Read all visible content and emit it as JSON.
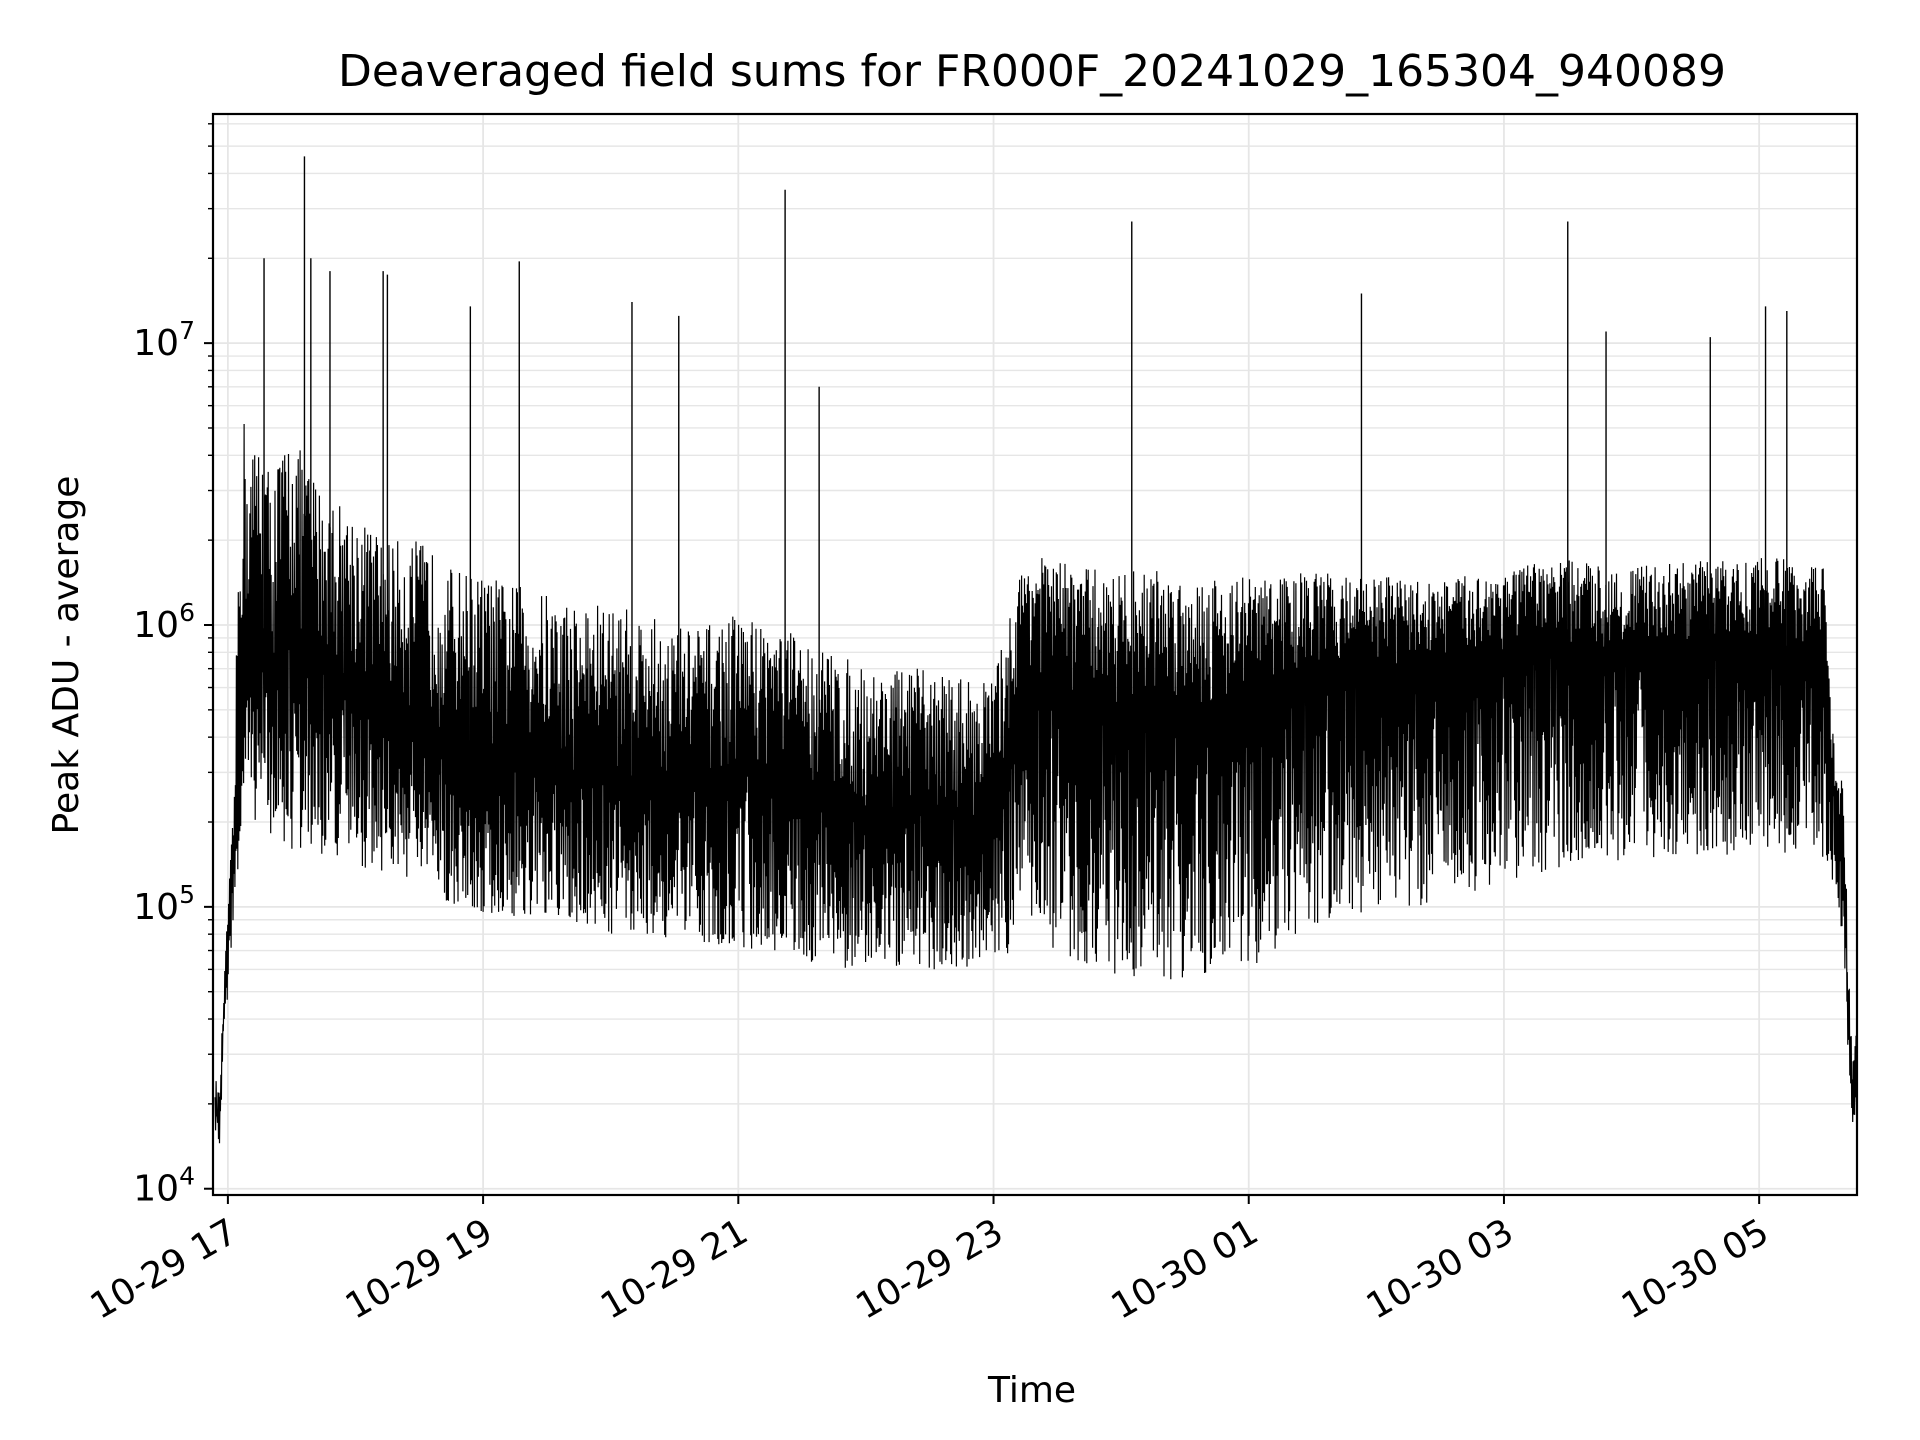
{
  "chart_data": {
    "type": "line",
    "title": "Deaveraged field sums for FR000F_20241029_165304_940089",
    "xlabel": "Time",
    "ylabel": "Peak ADU - average",
    "yscale": "log",
    "ylim": [
      9500,
      65000000
    ],
    "xlim": [
      "2024-10-29 16:53",
      "2024-10-30 05:46"
    ],
    "grid": true,
    "line_color": "#000000",
    "grid_color": "#e6e6e6",
    "x_ticks": [
      {
        "value": "2024-10-29 17:00",
        "label": "10-29 17"
      },
      {
        "value": "2024-10-29 19:00",
        "label": "10-29 19"
      },
      {
        "value": "2024-10-29 21:00",
        "label": "10-29 21"
      },
      {
        "value": "2024-10-29 23:00",
        "label": "10-29 23"
      },
      {
        "value": "2024-10-30 01:00",
        "label": "10-30 01"
      },
      {
        "value": "2024-10-30 03:00",
        "label": "10-30 03"
      },
      {
        "value": "2024-10-30 05:00",
        "label": "10-30 05"
      }
    ],
    "y_ticks": [
      {
        "value": 10000,
        "base": "10",
        "exp": "4"
      },
      {
        "value": 100000,
        "base": "10",
        "exp": "5"
      },
      {
        "value": 1000000,
        "base": "10",
        "exp": "6"
      },
      {
        "value": 10000000,
        "base": "10",
        "exp": "7"
      }
    ],
    "series": [
      {
        "x": [
          "2024-10-29 16:54",
          "2024-10-29 16:56",
          "2024-10-29 16:58",
          "2024-10-29 17:00",
          "2024-10-29 17:03",
          "2024-10-29 17:05",
          "2024-10-29 17:07",
          "2024-10-29 17:10",
          "2024-10-29 17:15",
          "2024-10-29 17:20",
          "2024-10-29 17:30",
          "2024-10-29 17:35",
          "2024-10-29 17:45",
          "2024-10-29 18:00",
          "2024-10-29 18:15",
          "2024-10-29 18:30",
          "2024-10-29 18:45",
          "2024-10-29 19:00",
          "2024-10-29 19:15",
          "2024-10-29 19:30",
          "2024-10-29 19:45",
          "2024-10-29 20:00",
          "2024-10-29 20:15",
          "2024-10-29 20:30",
          "2024-10-29 20:45",
          "2024-10-29 21:00",
          "2024-10-29 21:20",
          "2024-10-29 21:30",
          "2024-10-29 21:45",
          "2024-10-29 22:00",
          "2024-10-29 22:15",
          "2024-10-29 22:30",
          "2024-10-29 22:45",
          "2024-10-29 23:00",
          "2024-10-29 23:15",
          "2024-10-29 23:30",
          "2024-10-29 23:45",
          "2024-10-30 00:00",
          "2024-10-30 00:15",
          "2024-10-30 00:30",
          "2024-10-30 00:45",
          "2024-10-30 01:00",
          "2024-10-30 01:15",
          "2024-10-30 01:30",
          "2024-10-30 01:45",
          "2024-10-30 02:00",
          "2024-10-30 02:15",
          "2024-10-30 02:30",
          "2024-10-30 02:45",
          "2024-10-30 03:00",
          "2024-10-30 03:15",
          "2024-10-30 03:30",
          "2024-10-30 03:45",
          "2024-10-30 04:00",
          "2024-10-30 04:15",
          "2024-10-30 04:30",
          "2024-10-30 04:45",
          "2024-10-30 05:00",
          "2024-10-30 05:15",
          "2024-10-30 05:30",
          "2024-10-30 05:35",
          "2024-10-30 05:40",
          "2024-10-30 05:42",
          "2024-10-30 05:44",
          "2024-10-30 05:46"
        ],
        "y": [
          20000,
          16000,
          40000,
          80000,
          150000,
          300000,
          900000,
          700000,
          1000000,
          600000,
          900000,
          800000,
          700000,
          600000,
          500000,
          450000,
          400000,
          350000,
          320000,
          300000,
          280000,
          300000,
          270000,
          250000,
          260000,
          300000,
          280000,
          250000,
          230000,
          200000,
          210000,
          220000,
          200000,
          210000,
          700000,
          600000,
          550000,
          500000,
          520000,
          480000,
          500000,
          520000,
          600000,
          650000,
          700000,
          750000,
          720000,
          700000,
          750000,
          780000,
          800000,
          820000,
          800000,
          780000,
          820000,
          850000,
          830000,
          860000,
          820000,
          800000,
          250000,
          120000,
          40000,
          20000,
          30000
        ],
        "band_low": [
          16000,
          14000,
          30000,
          50000,
          100000,
          120000,
          200000,
          200000,
          200000,
          180000,
          150000,
          150000,
          150000,
          140000,
          130000,
          120000,
          100000,
          90000,
          90000,
          85000,
          85000,
          80000,
          80000,
          75000,
          75000,
          70000,
          70000,
          65000,
          60000,
          60000,
          60000,
          60000,
          60000,
          60000,
          80000,
          70000,
          60000,
          55000,
          55000,
          55000,
          60000,
          60000,
          70000,
          80000,
          90000,
          100000,
          100000,
          100000,
          110000,
          120000,
          130000,
          140000,
          140000,
          140000,
          150000,
          150000,
          150000,
          160000,
          150000,
          150000,
          120000,
          70000,
          25000,
          16000,
          20000
        ],
        "band_high": [
          25000,
          22000,
          50000,
          100000,
          250000,
          2500000,
          6000000,
          4000000,
          5000000,
          3500000,
          5000000,
          4000000,
          3000000,
          2500000,
          2000000,
          2000000,
          1600000,
          1500000,
          1400000,
          1300000,
          1200000,
          1200000,
          1100000,
          1000000,
          1000000,
          1100000,
          1000000,
          900000,
          800000,
          700000,
          700000,
          700000,
          650000,
          650000,
          1800000,
          1700000,
          1600000,
          1550000,
          1600000,
          1500000,
          1500000,
          1500000,
          1500000,
          1550000,
          1500000,
          1500000,
          1450000,
          1450000,
          1500000,
          1600000,
          1650000,
          1700000,
          1650000,
          1600000,
          1650000,
          1700000,
          1700000,
          1750000,
          1700000,
          1650000,
          400000,
          250000,
          60000,
          28000,
          38000
        ],
        "spikes": [
          {
            "x": "2024-10-29 17:17",
            "y": 20000000
          },
          {
            "x": "2024-10-29 17:36",
            "y": 46000000
          },
          {
            "x": "2024-10-29 17:39",
            "y": 20000000
          },
          {
            "x": "2024-10-29 17:48",
            "y": 18000000
          },
          {
            "x": "2024-10-29 18:13",
            "y": 18000000
          },
          {
            "x": "2024-10-29 18:15",
            "y": 17500000
          },
          {
            "x": "2024-10-29 18:54",
            "y": 13500000
          },
          {
            "x": "2024-10-29 19:17",
            "y": 19500000
          },
          {
            "x": "2024-10-29 20:10",
            "y": 14000000
          },
          {
            "x": "2024-10-29 20:32",
            "y": 12500000
          },
          {
            "x": "2024-10-29 21:22",
            "y": 35000000
          },
          {
            "x": "2024-10-29 21:38",
            "y": 7000000
          },
          {
            "x": "2024-10-30 00:05",
            "y": 27000000
          },
          {
            "x": "2024-10-30 01:53",
            "y": 15000000
          },
          {
            "x": "2024-10-30 03:30",
            "y": 27000000
          },
          {
            "x": "2024-10-30 03:48",
            "y": 11000000
          },
          {
            "x": "2024-10-30 04:37",
            "y": 10500000
          },
          {
            "x": "2024-10-30 05:03",
            "y": 13500000
          },
          {
            "x": "2024-10-30 05:13",
            "y": 13000000
          }
        ]
      }
    ]
  }
}
